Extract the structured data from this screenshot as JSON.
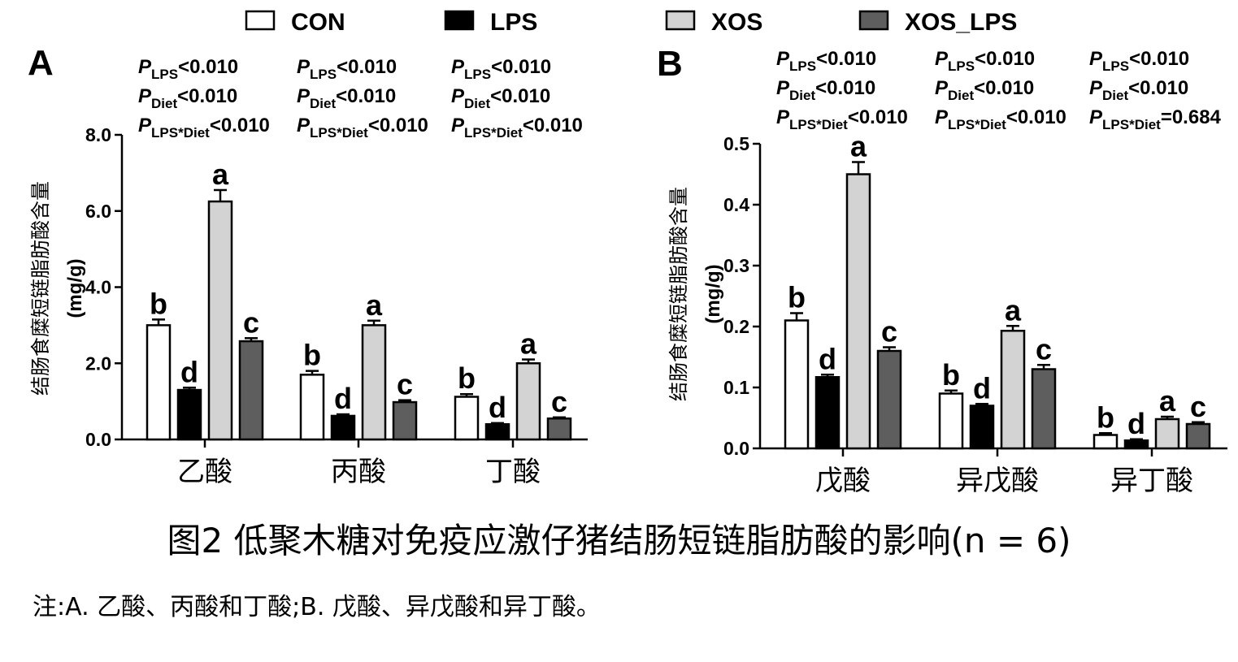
{
  "legend": [
    {
      "name": "CON",
      "color": "#ffffff"
    },
    {
      "name": "LPS",
      "color": "#000000"
    },
    {
      "name": "XOS",
      "color": "#d3d3d3"
    },
    {
      "name": "XOS_LPS",
      "color": "#5e5e5e"
    }
  ],
  "chart_data": [
    {
      "type": "bar",
      "panel": "A",
      "ylabel": "结肠食糜短链脂肪酸含量",
      "yunit": "(mg/g)",
      "ylim": [
        0,
        8
      ],
      "yticks": [
        "0.0",
        "2.0",
        "4.0",
        "6.0",
        "8.0"
      ],
      "categories": [
        "乙酸",
        "丙酸",
        "丁酸"
      ],
      "series": [
        {
          "name": "CON",
          "values": [
            3.0,
            1.7,
            1.12
          ],
          "errors": [
            0.15,
            0.1,
            0.07
          ],
          "letters": [
            "b",
            "b",
            "b"
          ]
        },
        {
          "name": "LPS",
          "values": [
            1.3,
            0.62,
            0.4
          ],
          "errors": [
            0.06,
            0.04,
            0.03
          ],
          "letters": [
            "d",
            "d",
            "d"
          ]
        },
        {
          "name": "XOS",
          "values": [
            6.25,
            3.0,
            2.0
          ],
          "errors": [
            0.3,
            0.12,
            0.1
          ],
          "letters": [
            "a",
            "a",
            "a"
          ]
        },
        {
          "name": "XOS_LPS",
          "values": [
            2.58,
            0.98,
            0.55
          ],
          "errors": [
            0.08,
            0.05,
            0.03
          ],
          "letters": [
            "c",
            "c",
            "c"
          ]
        }
      ],
      "stats": [
        {
          "lps": "<0.010",
          "diet": "<0.010",
          "inter": "<0.010"
        },
        {
          "lps": "<0.010",
          "diet": "<0.010",
          "inter": "<0.010"
        },
        {
          "lps": "<0.010",
          "diet": "<0.010",
          "inter": "<0.010"
        }
      ]
    },
    {
      "type": "bar",
      "panel": "B",
      "ylabel": "结肠食糜短链脂肪酸含量",
      "yunit": "(mg/g)",
      "ylim": [
        0,
        0.5
      ],
      "yticks": [
        "0.0",
        "0.1",
        "0.2",
        "0.3",
        "0.4",
        "0.5"
      ],
      "categories": [
        "戊酸",
        "异戊酸",
        "异丁酸"
      ],
      "series": [
        {
          "name": "CON",
          "values": [
            0.21,
            0.09,
            0.022
          ],
          "errors": [
            0.012,
            0.005,
            0.003
          ],
          "letters": [
            "b",
            "b",
            "b"
          ]
        },
        {
          "name": "LPS",
          "values": [
            0.117,
            0.07,
            0.013
          ],
          "errors": [
            0.004,
            0.003,
            0.002
          ],
          "letters": [
            "d",
            "d",
            "d"
          ]
        },
        {
          "name": "XOS",
          "values": [
            0.45,
            0.193,
            0.048
          ],
          "errors": [
            0.02,
            0.008,
            0.004
          ],
          "letters": [
            "a",
            "a",
            "a"
          ]
        },
        {
          "name": "XOS_LPS",
          "values": [
            0.16,
            0.13,
            0.04
          ],
          "errors": [
            0.006,
            0.007,
            0.003
          ],
          "letters": [
            "c",
            "c",
            "c"
          ]
        }
      ],
      "stats": [
        {
          "lps": "<0.010",
          "diet": "<0.010",
          "inter": "<0.010"
        },
        {
          "lps": "<0.010",
          "diet": "<0.010",
          "inter": "<0.010"
        },
        {
          "lps": "<0.010",
          "diet": "<0.010",
          "inter": "=0.684"
        }
      ]
    }
  ],
  "stat_labels": {
    "P": "P",
    "lps_sub": "LPS",
    "diet_sub": "Diet",
    "inter_sub": "LPS*Diet"
  },
  "caption": "图2 低聚木糖对免疫应激仔猪结肠短链脂肪酸的影响(n = 6)",
  "note": "注:A. 乙酸、丙酸和丁酸;B. 戊酸、异戊酸和异丁酸。"
}
